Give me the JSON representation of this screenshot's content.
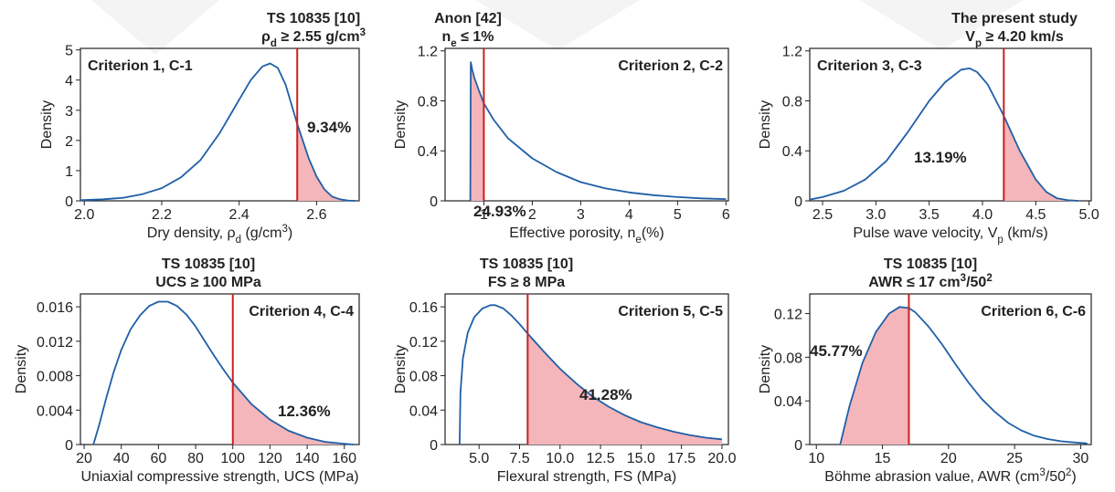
{
  "colors": {
    "curve": "#1f5fa8",
    "threshold": "#cc1f1f",
    "fill": "#f4b6bb",
    "axis": "#222222",
    "text": "#222222"
  },
  "chart_data": [
    {
      "type": "area",
      "criterion": "Criterion 1, C-1",
      "title_lines": [
        "TS 10835 [10]",
        "ρd ≥ 2.55 g/cm3"
      ],
      "xlabel": "Dry density, ρd (g/cm3)",
      "ylabel": "Density",
      "xlim": [
        1.99,
        2.71
      ],
      "ylim": [
        0,
        5.05
      ],
      "xticks": [
        2.0,
        2.2,
        2.4,
        2.6
      ],
      "xtick_labels": [
        "2.0",
        "2.2",
        "2.4",
        "2.6"
      ],
      "yticks": [
        0,
        1,
        2,
        3,
        4,
        5
      ],
      "ytick_labels": [
        "0",
        "1",
        "2",
        "3",
        "4",
        "5"
      ],
      "threshold": 2.55,
      "shade": "right",
      "percentage": "9.34%",
      "curve": {
        "x": [
          1.99,
          2.05,
          2.1,
          2.15,
          2.2,
          2.25,
          2.3,
          2.35,
          2.4,
          2.43,
          2.46,
          2.48,
          2.5,
          2.52,
          2.55,
          2.58,
          2.6,
          2.62,
          2.64,
          2.66,
          2.68,
          2.7
        ],
        "y": [
          0.02,
          0.05,
          0.1,
          0.22,
          0.42,
          0.78,
          1.35,
          2.25,
          3.35,
          4.0,
          4.45,
          4.55,
          4.4,
          3.85,
          2.55,
          1.4,
          0.8,
          0.38,
          0.14,
          0.05,
          0.01,
          0
        ]
      }
    },
    {
      "type": "area",
      "criterion": "Criterion 2, C-2",
      "title_lines": [
        "Anon [42]",
        "ne ≤ 1%"
      ],
      "xlabel": "Effective porosity, ne(%)",
      "ylabel": "Density",
      "xlim": [
        0.2,
        6.05
      ],
      "ylim": [
        0,
        1.22
      ],
      "xticks": [
        1,
        2,
        3,
        4,
        5,
        6
      ],
      "xtick_labels": [
        "1",
        "2",
        "3",
        "4",
        "5",
        "6"
      ],
      "yticks": [
        0,
        0.4,
        0.8,
        1.2
      ],
      "ytick_labels": [
        "0",
        "0.4",
        "0.8",
        "1.2"
      ],
      "threshold": 1.0,
      "shade": "left",
      "percentage": "24.93%",
      "curve": {
        "x": [
          0.72,
          0.73,
          0.76,
          0.8,
          0.9,
          1.0,
          1.2,
          1.5,
          2.0,
          2.5,
          3.0,
          3.5,
          4.0,
          4.5,
          5.0,
          5.5,
          6.0
        ],
        "y": [
          0,
          1.11,
          1.05,
          0.99,
          0.88,
          0.78,
          0.65,
          0.5,
          0.34,
          0.23,
          0.15,
          0.1,
          0.067,
          0.045,
          0.03,
          0.02,
          0.014
        ]
      }
    },
    {
      "type": "area",
      "criterion": "Criterion 3, C-3",
      "title_lines": [
        "The present study",
        "Vp ≥ 4.20 km/s"
      ],
      "xlabel": "Pulse wave velocity, Vp (km/s)",
      "ylabel": "Density",
      "xlim": [
        2.38,
        5.02
      ],
      "ylim": [
        0,
        1.22
      ],
      "xticks": [
        2.5,
        3.0,
        3.5,
        4.0,
        4.5,
        5.0
      ],
      "xtick_labels": [
        "2.5",
        "3.0",
        "3.5",
        "4.0",
        "4.5",
        "5.0"
      ],
      "yticks": [
        0,
        0.4,
        0.8,
        1.2
      ],
      "ytick_labels": [
        "0",
        "0.4",
        "0.8",
        "1.2"
      ],
      "threshold": 4.2,
      "shade": "right",
      "percentage": "13.19%",
      "curve": {
        "x": [
          2.38,
          2.5,
          2.7,
          2.9,
          3.1,
          3.3,
          3.5,
          3.65,
          3.8,
          3.88,
          3.95,
          4.05,
          4.2,
          4.35,
          4.5,
          4.6,
          4.7,
          4.8,
          4.9
        ],
        "y": [
          0.01,
          0.03,
          0.08,
          0.17,
          0.32,
          0.55,
          0.8,
          0.95,
          1.05,
          1.06,
          1.03,
          0.93,
          0.68,
          0.4,
          0.17,
          0.07,
          0.02,
          0.005,
          0
        ]
      }
    },
    {
      "type": "area",
      "criterion": "Criterion 4, C-4",
      "title_lines": [
        "TS 10835 [10]",
        "UCS  ≥ 100 MPa"
      ],
      "xlabel": "Uniaxial compressive strength, UCS (MPa)",
      "ylabel": "Density",
      "xlim": [
        18,
        168
      ],
      "ylim": [
        0,
        0.0175
      ],
      "xticks": [
        20,
        40,
        60,
        80,
        100,
        120,
        140,
        160
      ],
      "xtick_labels": [
        "20",
        "40",
        "60",
        "80",
        "100",
        "120",
        "140",
        "160"
      ],
      "yticks": [
        0,
        0.004,
        0.008,
        0.012,
        0.016
      ],
      "ytick_labels": [
        "0",
        "0.004",
        "0.008",
        "0.012",
        "0.016"
      ],
      "threshold": 100,
      "shade": "right",
      "percentage": "12.36%",
      "curve": {
        "x": [
          25,
          28,
          32,
          36,
          40,
          45,
          50,
          55,
          60,
          65,
          70,
          75,
          80,
          85,
          90,
          95,
          100,
          110,
          120,
          130,
          140,
          150,
          160,
          165
        ],
        "y": [
          0,
          0.0022,
          0.0055,
          0.0085,
          0.011,
          0.0134,
          0.015,
          0.0161,
          0.0166,
          0.0166,
          0.0161,
          0.0151,
          0.0137,
          0.012,
          0.0103,
          0.0087,
          0.0072,
          0.0047,
          0.0029,
          0.0016,
          0.0008,
          0.0003,
          0.0001,
          0
        ]
      }
    },
    {
      "type": "area",
      "criterion": "Criterion 5, C-5",
      "title_lines": [
        "TS 10835 [10]",
        "FS ≥ 8 MPa"
      ],
      "xlabel": "Flexural strength, FS (MPa)",
      "ylabel": "Density",
      "xlim": [
        2.9,
        20.4
      ],
      "ylim": [
        0,
        0.175
      ],
      "xticks": [
        5.0,
        7.5,
        10.0,
        12.5,
        15.0,
        17.5,
        20.0
      ],
      "xtick_labels": [
        "5.0",
        "7.5",
        "10.0",
        "12.5",
        "15.0",
        "17.5",
        "20.0"
      ],
      "yticks": [
        0,
        0.04,
        0.08,
        0.12,
        0.16
      ],
      "ytick_labels": [
        "0",
        "0.04",
        "0.08",
        "0.12",
        "0.16"
      ],
      "threshold": 8,
      "shade": "right",
      "percentage": "41.28%",
      "curve": {
        "x": [
          3.8,
          3.85,
          4.0,
          4.3,
          4.7,
          5.2,
          5.7,
          6.0,
          6.5,
          7.0,
          7.5,
          8.0,
          9.0,
          10.0,
          11.0,
          12.0,
          13.0,
          14.0,
          15.0,
          16.0,
          17.0,
          18.0,
          19.0,
          20.0
        ],
        "y": [
          0,
          0.06,
          0.1,
          0.13,
          0.148,
          0.158,
          0.162,
          0.162,
          0.158,
          0.15,
          0.14,
          0.129,
          0.108,
          0.088,
          0.071,
          0.056,
          0.044,
          0.034,
          0.026,
          0.02,
          0.015,
          0.011,
          0.008,
          0.006
        ]
      }
    },
    {
      "type": "area",
      "criterion": "Criterion 6, C-6",
      "title_lines": [
        "TS 10835 [10]",
        "AWR  ≤ 17 cm3/502"
      ],
      "xlabel": "Böhme abrasion value, AWR (cm3/502)",
      "ylabel": "Density",
      "xlim": [
        9.5,
        30.8
      ],
      "ylim": [
        0,
        0.138
      ],
      "xticks": [
        10,
        15,
        20,
        25,
        30
      ],
      "xtick_labels": [
        "10",
        "15",
        "20",
        "25",
        "30"
      ],
      "yticks": [
        0,
        0.04,
        0.08,
        0.12
      ],
      "ytick_labels": [
        "0",
        "0.04",
        "0.08",
        "0.12"
      ],
      "threshold": 17,
      "shade": "left",
      "percentage": "45.77%",
      "curve": {
        "x": [
          11.8,
          12.5,
          13.5,
          14.5,
          15.5,
          16.3,
          17.0,
          17.5,
          18.5,
          19.5,
          20.5,
          21.5,
          22.5,
          23.5,
          24.5,
          25.5,
          26.5,
          27.5,
          28.5,
          29.5,
          30.5
        ],
        "y": [
          0,
          0.035,
          0.075,
          0.103,
          0.12,
          0.126,
          0.125,
          0.121,
          0.108,
          0.092,
          0.074,
          0.057,
          0.042,
          0.03,
          0.02,
          0.013,
          0.008,
          0.005,
          0.003,
          0.002,
          0.001
        ]
      }
    }
  ]
}
